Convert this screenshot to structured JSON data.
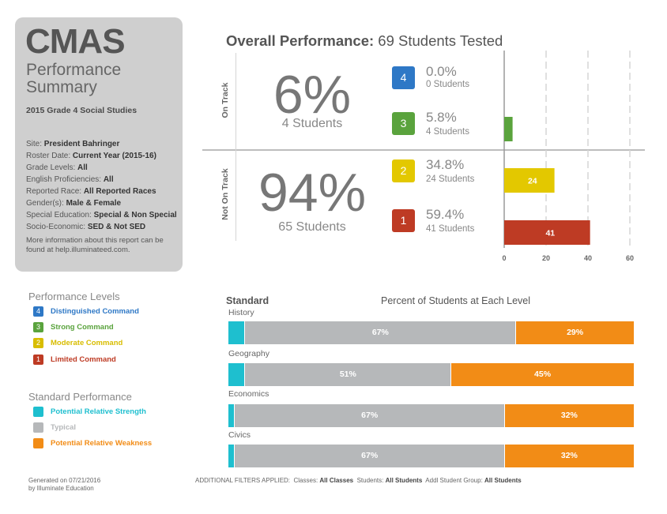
{
  "header": {
    "brand": "CMAS",
    "subtitle_line1": "Performance",
    "subtitle_line2": "Summary",
    "year_grade": "2015 Grade 4 Social Studies"
  },
  "info": [
    {
      "label": "Site:",
      "value": "President Bahringer"
    },
    {
      "label": "Roster Date:",
      "value": "Current Year (2015-16)"
    },
    {
      "label": "Grade Levels:",
      "value": "All"
    },
    {
      "label": "English Proficiencies:",
      "value": "All"
    },
    {
      "label": "Reported Race:",
      "value": "All Reported Races"
    },
    {
      "label": "Gender(s):",
      "value": "Male & Female"
    },
    {
      "label": "Special Education:",
      "value": "Special & Non Special"
    },
    {
      "label": "Socio-Economic:",
      "value": "SED & Not SED"
    }
  ],
  "more_info": "More information about this report can be found at help.illuminateed.com.",
  "overall": {
    "title_bold": "Overall Performance:",
    "title_rest": "69 Students Tested",
    "on_track_label": "On Track",
    "not_on_track_label": "Not On Track",
    "on_track_pct": "6%",
    "on_track_count": "4 Students",
    "not_on_track_pct": "94%",
    "not_on_track_count": "65 Students"
  },
  "levels": [
    {
      "num": "4",
      "pct": "0.0%",
      "count": "0 Students",
      "color": "#2e78c6"
    },
    {
      "num": "3",
      "pct": "5.8%",
      "count": "4 Students",
      "color": "#5aa33d"
    },
    {
      "num": "2",
      "pct": "34.8%",
      "count": "24 Students",
      "color": "#e3c800"
    },
    {
      "num": "1",
      "pct": "59.4%",
      "count": "41 Students",
      "color": "#be3b24"
    }
  ],
  "legend_levels": {
    "title": "Performance Levels",
    "items": [
      {
        "num": "4",
        "label": "Distinguished Command",
        "color": "#2e78c6"
      },
      {
        "num": "3",
        "label": "Strong Command",
        "color": "#5aa33d"
      },
      {
        "num": "2",
        "label": "Moderate Command",
        "color": "#d8bd00"
      },
      {
        "num": "1",
        "label": "Limited Command",
        "color": "#be3b24"
      }
    ]
  },
  "legend_standard": {
    "title": "Standard Performance",
    "items": [
      {
        "label": "Potential Relative Strength",
        "color": "#1ebfcf"
      },
      {
        "label": "Typical",
        "color": "#b6b8ba"
      },
      {
        "label": "Potential Relative Weakness",
        "color": "#f28c16"
      }
    ]
  },
  "standards": {
    "heading": "Standard",
    "subheading": "Percent of Students at Each Level"
  },
  "footer": {
    "generated_line1": "Generated on 07/21/2016",
    "generated_line2": "by Illuminate Education",
    "filters_prefix": "ADDITIONAL FILTERS APPLIED:",
    "classes_label": "Classes:",
    "classes_value": "All Classes",
    "students_label": "Students:",
    "students_value": "All Students",
    "group_label": "Addl Student Group:",
    "group_value": "All Students"
  },
  "chart_data": [
    {
      "type": "bar",
      "orientation": "horizontal",
      "title": "Overall Performance: 69 Students Tested",
      "categories": [
        "4",
        "3",
        "2",
        "1"
      ],
      "values": [
        0,
        4,
        24,
        41
      ],
      "value_labels": [
        "",
        "",
        "24",
        "41"
      ],
      "colors": [
        "#2e78c6",
        "#5aa33d",
        "#e3c800",
        "#be3b24"
      ],
      "xlim": [
        0,
        60
      ],
      "xticks": [
        "0",
        "20",
        "40",
        "60"
      ]
    },
    {
      "type": "bar",
      "orientation": "horizontal",
      "stacked": true,
      "title": "Percent of Students at Each Level",
      "categories": [
        "History",
        "Geography",
        "Economics",
        "Civics"
      ],
      "series": [
        {
          "name": "Potential Relative Strength",
          "color": "#1ebfcf",
          "values": [
            4,
            4,
            1.5,
            1.5
          ]
        },
        {
          "name": "Typical",
          "color": "#b6b8ba",
          "values": [
            67,
            51,
            67,
            67
          ]
        },
        {
          "name": "Potential Relative Weakness",
          "color": "#f28c16",
          "values": [
            29,
            45,
            32,
            32
          ]
        }
      ],
      "segment_labels": [
        [
          "",
          "67%",
          "29%"
        ],
        [
          "",
          "51%",
          "45%"
        ],
        [
          "",
          "67%",
          "32%"
        ],
        [
          "",
          "67%",
          "32%"
        ]
      ]
    }
  ]
}
